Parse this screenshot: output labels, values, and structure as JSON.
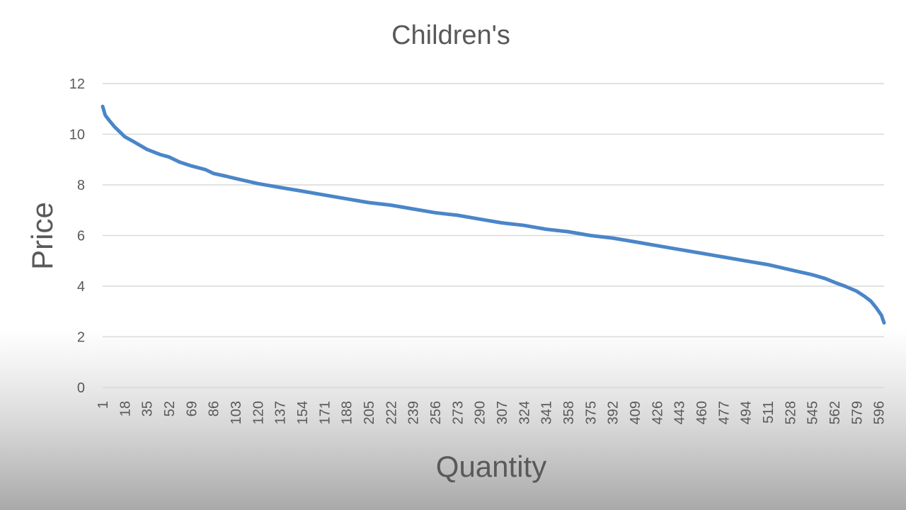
{
  "chart_data": {
    "type": "line",
    "title": "Children's",
    "xlabel": "Quantity",
    "ylabel": "Price",
    "ylim": [
      0,
      12
    ],
    "yticks": [
      0,
      2,
      4,
      6,
      8,
      10,
      12
    ],
    "xlim": [
      1,
      600
    ],
    "x_tick_labels": [
      "1",
      "18",
      "35",
      "52",
      "69",
      "86",
      "103",
      "120",
      "137",
      "154",
      "171",
      "188",
      "205",
      "222",
      "239",
      "256",
      "273",
      "290",
      "307",
      "324",
      "341",
      "358",
      "375",
      "392",
      "409",
      "426",
      "443",
      "460",
      "477",
      "494",
      "511",
      "528",
      "545",
      "562",
      "579",
      "596"
    ],
    "grid": true,
    "legend": "none",
    "series": [
      {
        "color": "#4a86c8",
        "x": [
          1,
          3,
          6,
          10,
          15,
          18,
          25,
          35,
          45,
          52,
          60,
          69,
          80,
          86,
          95,
          103,
          120,
          137,
          154,
          171,
          188,
          205,
          222,
          239,
          256,
          273,
          290,
          307,
          324,
          341,
          358,
          375,
          392,
          409,
          426,
          443,
          460,
          477,
          494,
          511,
          528,
          545,
          555,
          562,
          570,
          579,
          585,
          590,
          594,
          598,
          600
        ],
        "y": [
          11.1,
          10.75,
          10.55,
          10.3,
          10.05,
          9.9,
          9.7,
          9.4,
          9.2,
          9.1,
          8.9,
          8.75,
          8.6,
          8.45,
          8.35,
          8.25,
          8.05,
          7.9,
          7.75,
          7.6,
          7.45,
          7.3,
          7.2,
          7.05,
          6.9,
          6.8,
          6.65,
          6.5,
          6.4,
          6.25,
          6.15,
          6.0,
          5.9,
          5.75,
          5.6,
          5.45,
          5.3,
          5.15,
          5.0,
          4.85,
          4.65,
          4.45,
          4.3,
          4.15,
          4.0,
          3.8,
          3.6,
          3.4,
          3.15,
          2.85,
          2.55
        ]
      }
    ]
  }
}
